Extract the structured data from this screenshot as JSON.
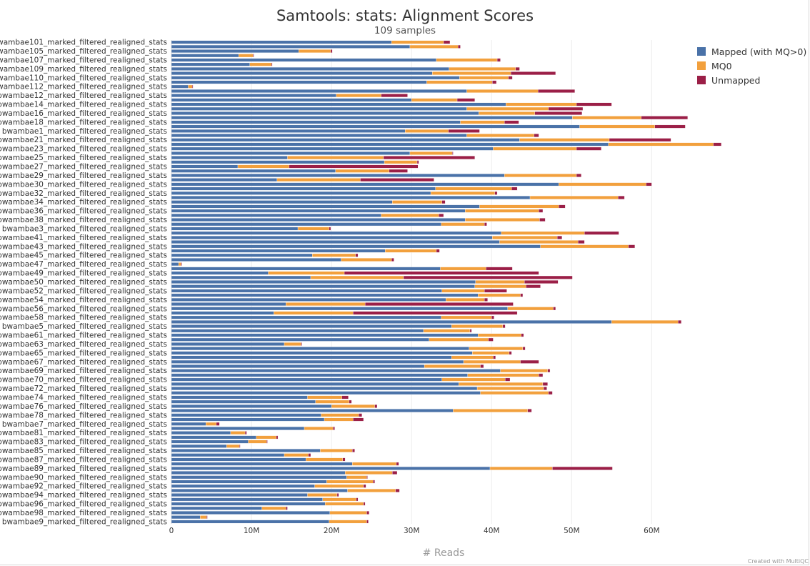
{
  "chart_data": {
    "type": "bar",
    "orientation": "horizontal",
    "stacked": true,
    "title": "Samtools: stats: Alignment Scores",
    "subtitle": "109 samples",
    "xlabel": "# Reads",
    "xlim": [
      0,
      68000000
    ],
    "xticks": [
      0,
      10000000,
      20000000,
      30000000,
      40000000,
      50000000,
      60000000
    ],
    "xtick_labels": [
      "0",
      "10M",
      "20M",
      "30M",
      "40M",
      "50M",
      "60M"
    ],
    "grid": true,
    "legend_position": "top-right",
    "series": [
      {
        "name": "Mapped (with MQ>0)",
        "color": "#4a72a8"
      },
      {
        "name": "MQ0",
        "color": "#f2a03d"
      },
      {
        "name": "Unmapped",
        "color": "#9b1f47"
      }
    ],
    "labeled_categories": [
      "bwambae101_marked_filtered_realigned_stats",
      "bwambae105_marked_filtered_realigned_stats",
      "bwambae107_marked_filtered_realigned_stats",
      "bwambae109_marked_filtered_realigned_stats",
      "bwambae110_marked_filtered_realigned_stats",
      "bwambae112_marked_filtered_realigned_stats",
      "bwambae12_marked_filtered_realigned_stats",
      "bwambae14_marked_filtered_realigned_stats",
      "bwambae16_marked_filtered_realigned_stats",
      "bwambae18_marked_filtered_realigned_stats",
      "bwambae1_marked_filtered_realigned_stats",
      "bwambae21_marked_filtered_realigned_stats",
      "bwambae23_marked_filtered_realigned_stats",
      "bwambae25_marked_filtered_realigned_stats",
      "bwambae27_marked_filtered_realigned_stats",
      "bwambae29_marked_filtered_realigned_stats",
      "bwambae30_marked_filtered_realigned_stats",
      "bwambae32_marked_filtered_realigned_stats",
      "bwambae34_marked_filtered_realigned_stats",
      "bwambae36_marked_filtered_realigned_stats",
      "bwambae38_marked_filtered_realigned_stats",
      "bwambae3_marked_filtered_realigned_stats",
      "bwambae41_marked_filtered_realigned_stats",
      "bwambae43_marked_filtered_realigned_stats",
      "bwambae45_marked_filtered_realigned_stats",
      "bwambae47_marked_filtered_realigned_stats",
      "bwambae49_marked_filtered_realigned_stats",
      "bwambae50_marked_filtered_realigned_stats",
      "bwambae52_marked_filtered_realigned_stats",
      "bwambae54_marked_filtered_realigned_stats",
      "bwambae56_marked_filtered_realigned_stats",
      "bwambae58_marked_filtered_realigned_stats",
      "bwambae5_marked_filtered_realigned_stats",
      "bwambae61_marked_filtered_realigned_stats",
      "bwambae63_marked_filtered_realigned_stats",
      "bwambae65_marked_filtered_realigned_stats",
      "bwambae67_marked_filtered_realigned_stats",
      "bwambae69_marked_filtered_realigned_stats",
      "bwambae70_marked_filtered_realigned_stats",
      "bwambae72_marked_filtered_realigned_stats",
      "bwambae74_marked_filtered_realigned_stats",
      "bwambae76_marked_filtered_realigned_stats",
      "bwambae78_marked_filtered_realigned_stats",
      "bwambae7_marked_filtered_realigned_stats",
      "bwambae81_marked_filtered_realigned_stats",
      "bwambae83_marked_filtered_realigned_stats",
      "bwambae85_marked_filtered_realigned_stats",
      "bwambae87_marked_filtered_realigned_stats",
      "bwambae89_marked_filtered_realigned_stats",
      "bwambae90_marked_filtered_realigned_stats",
      "bwambae92_marked_filtered_realigned_stats",
      "bwambae94_marked_filtered_realigned_stats",
      "bwambae96_marked_filtered_realigned_stats",
      "bwambae98_marked_filtered_realigned_stats",
      "bwambae9_marked_filtered_realigned_stats"
    ],
    "bars_millions": [
      [
        27.5,
        6.5,
        0.8
      ],
      [
        29.8,
        6.0,
        0.3
      ],
      [
        15.9,
        4.0,
        0.2
      ],
      [
        8.4,
        1.8,
        0.1
      ],
      [
        33.1,
        7.6,
        0.4
      ],
      [
        9.8,
        2.7,
        0.1
      ],
      [
        34.7,
        8.3,
        0.5
      ],
      [
        32.6,
        9.8,
        5.6
      ],
      [
        36.0,
        6.1,
        0.5
      ],
      [
        31.9,
        8.2,
        0.5
      ],
      [
        2.1,
        0.5,
        0.1
      ],
      [
        36.9,
        8.9,
        4.6
      ],
      [
        20.6,
        5.6,
        3.3
      ],
      [
        30.0,
        5.7,
        2.2
      ],
      [
        41.8,
        8.8,
        4.4
      ],
      [
        36.9,
        10.2,
        4.3
      ],
      [
        38.4,
        7.0,
        5.9
      ],
      [
        50.1,
        8.6,
        5.8
      ],
      [
        36.1,
        5.5,
        1.8
      ],
      [
        51.0,
        9.4,
        3.8
      ],
      [
        29.2,
        5.4,
        3.9
      ],
      [
        36.9,
        8.4,
        0.6
      ],
      [
        43.5,
        11.2,
        7.7
      ],
      [
        54.6,
        13.1,
        1.0
      ],
      [
        40.2,
        10.4,
        3.1
      ],
      [
        29.8,
        5.3,
        0.1
      ],
      [
        14.5,
        12.0,
        11.4
      ],
      [
        26.6,
        4.1,
        0.2
      ],
      [
        8.3,
        6.4,
        16.1
      ],
      [
        20.5,
        6.7,
        2.3
      ],
      [
        41.6,
        9.0,
        0.6
      ],
      [
        13.2,
        10.4,
        9.2
      ],
      [
        48.4,
        10.9,
        0.7
      ],
      [
        33.0,
        9.5,
        0.7
      ],
      [
        32.4,
        8.0,
        0.3
      ],
      [
        44.8,
        11.0,
        0.8
      ],
      [
        27.6,
        6.2,
        0.4
      ],
      [
        38.5,
        9.9,
        0.8
      ],
      [
        36.7,
        9.2,
        0.5
      ],
      [
        26.2,
        7.2,
        0.6
      ],
      [
        36.7,
        9.3,
        0.7
      ],
      [
        33.7,
        5.4,
        0.3
      ],
      [
        15.8,
        3.9,
        0.2
      ],
      [
        41.2,
        10.4,
        4.3
      ],
      [
        40.1,
        8.1,
        0.6
      ],
      [
        41.0,
        9.8,
        0.8
      ],
      [
        46.1,
        11.0,
        0.8
      ],
      [
        26.7,
        6.4,
        0.4
      ],
      [
        17.6,
        5.4,
        0.3
      ],
      [
        21.2,
        6.3,
        0.3
      ],
      [
        0.9,
        0.3,
        0.1
      ],
      [
        33.6,
        5.7,
        3.3
      ],
      [
        12.1,
        9.5,
        24.3
      ],
      [
        17.4,
        11.6,
        21.1
      ],
      [
        38.0,
        6.1,
        4.2
      ],
      [
        37.9,
        6.4,
        1.8
      ],
      [
        33.8,
        5.3,
        2.8
      ],
      [
        38.3,
        5.3,
        0.3
      ],
      [
        34.3,
        4.8,
        0.4
      ],
      [
        14.3,
        9.9,
        18.5
      ],
      [
        42.0,
        5.7,
        0.3
      ],
      [
        12.8,
        9.9,
        20.5
      ],
      [
        33.7,
        6.3,
        0.3
      ],
      [
        55.0,
        8.3,
        0.4
      ],
      [
        35.0,
        6.4,
        0.3
      ],
      [
        31.5,
        5.8,
        0.2
      ],
      [
        38.3,
        5.4,
        0.3
      ],
      [
        32.2,
        7.4,
        0.6
      ],
      [
        14.1,
        2.1,
        0.1
      ],
      [
        37.2,
        6.7,
        0.3
      ],
      [
        37.6,
        4.6,
        0.3
      ],
      [
        35.0,
        5.2,
        0.3
      ],
      [
        36.5,
        7.1,
        2.3
      ],
      [
        31.6,
        7.0,
        0.4
      ],
      [
        41.1,
        5.9,
        0.3
      ],
      [
        37.0,
        8.9,
        0.5
      ],
      [
        33.8,
        7.9,
        0.6
      ],
      [
        35.9,
        10.5,
        0.6
      ],
      [
        38.2,
        8.3,
        0.4
      ],
      [
        38.6,
        8.5,
        0.5
      ],
      [
        17.0,
        4.3,
        0.8
      ],
      [
        18.0,
        4.2,
        0.3
      ],
      [
        20.0,
        5.4,
        0.3
      ],
      [
        35.2,
        9.3,
        0.5
      ],
      [
        18.7,
        4.7,
        0.4
      ],
      [
        19.1,
        3.6,
        1.3
      ],
      [
        4.3,
        1.3,
        0.4
      ],
      [
        16.6,
        3.6,
        0.2
      ],
      [
        7.4,
        1.8,
        0.2
      ],
      [
        10.6,
        2.5,
        0.2
      ],
      [
        9.6,
        2.3,
        0.1
      ],
      [
        6.9,
        1.6,
        0.1
      ],
      [
        18.6,
        4.0,
        0.3
      ],
      [
        14.1,
        3.0,
        0.3
      ],
      [
        16.8,
        4.6,
        0.3
      ],
      [
        22.6,
        5.5,
        0.3
      ],
      [
        39.8,
        7.8,
        7.5
      ],
      [
        21.7,
        5.9,
        0.6
      ],
      [
        21.9,
        2.5,
        0.1
      ],
      [
        19.4,
        5.8,
        0.2
      ],
      [
        17.9,
        6.1,
        0.3
      ],
      [
        22.0,
        6.0,
        0.5
      ],
      [
        17.0,
        3.7,
        0.2
      ],
      [
        18.9,
        4.2,
        0.2
      ],
      [
        19.2,
        4.8,
        0.2
      ],
      [
        11.3,
        3.0,
        0.2
      ],
      [
        19.8,
        4.6,
        0.3
      ],
      [
        3.6,
        0.8,
        0.1
      ],
      [
        19.7,
        4.7,
        0.2
      ]
    ]
  },
  "credit": "Created with MultiQC"
}
